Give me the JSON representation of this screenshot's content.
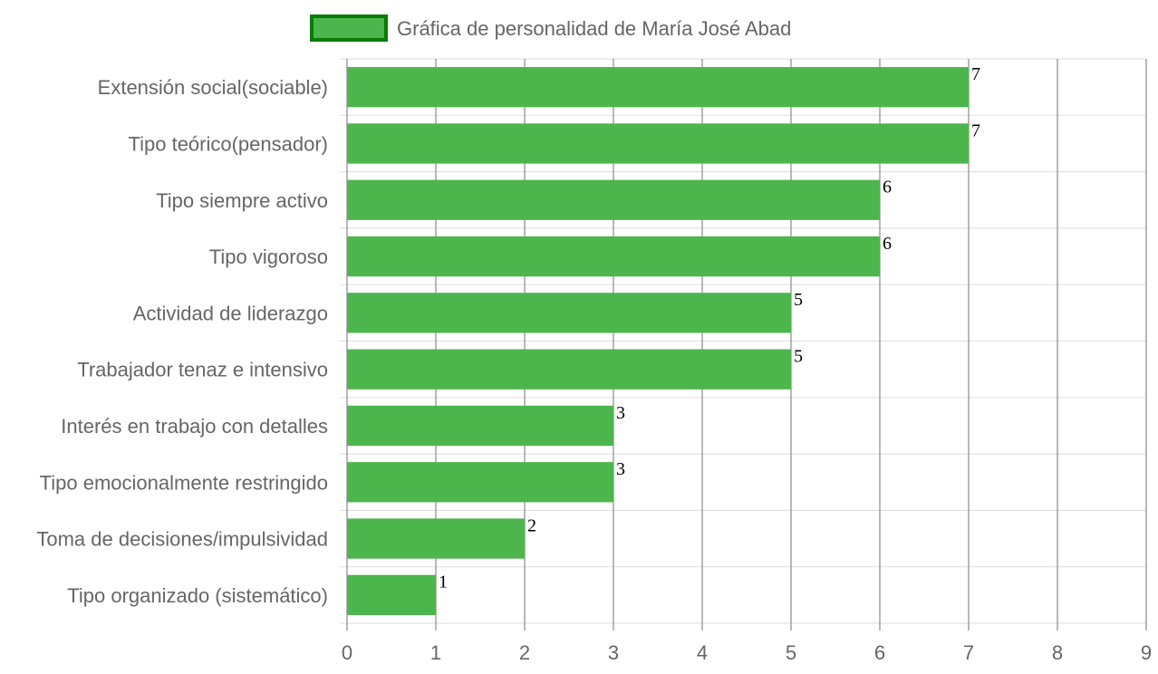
{
  "chart_data": {
    "type": "bar",
    "orientation": "horizontal",
    "categories": [
      "Extensión social(sociable)",
      "Tipo teórico(pensador)",
      "Tipo siempre activo",
      "Tipo vigoroso",
      "Actividad de liderazgo",
      "Trabajador tenaz e intensivo",
      "Interés en trabajo con detalles",
      "Tipo emocionalmente restringido",
      "Toma de decisiones/impulsividad",
      "Tipo organizado (sistemático)"
    ],
    "series": [
      {
        "name": "Gráfica de personalidad de María José Abad",
        "values": [
          7,
          7,
          6,
          6,
          5,
          5,
          3,
          3,
          2,
          1
        ],
        "color": "#4cb64c",
        "border_color": "#0a7a0a"
      }
    ],
    "xlim": [
      0,
      9
    ],
    "x_ticks": [
      "0",
      "1",
      "2",
      "3",
      "4",
      "5",
      "6",
      "7",
      "8",
      "9"
    ],
    "data_labels": [
      "7",
      "7",
      "6",
      "6",
      "5",
      "5",
      "3",
      "3",
      "2",
      "1"
    ],
    "legend_position": "top",
    "grid": true,
    "colors": {
      "bar_fill": "#4cb64c",
      "legend_border": "#0a7a0a",
      "grid_vertical": "#8a8a8a",
      "grid_horizontal": "#e2e2e2",
      "text": "#666666"
    }
  }
}
